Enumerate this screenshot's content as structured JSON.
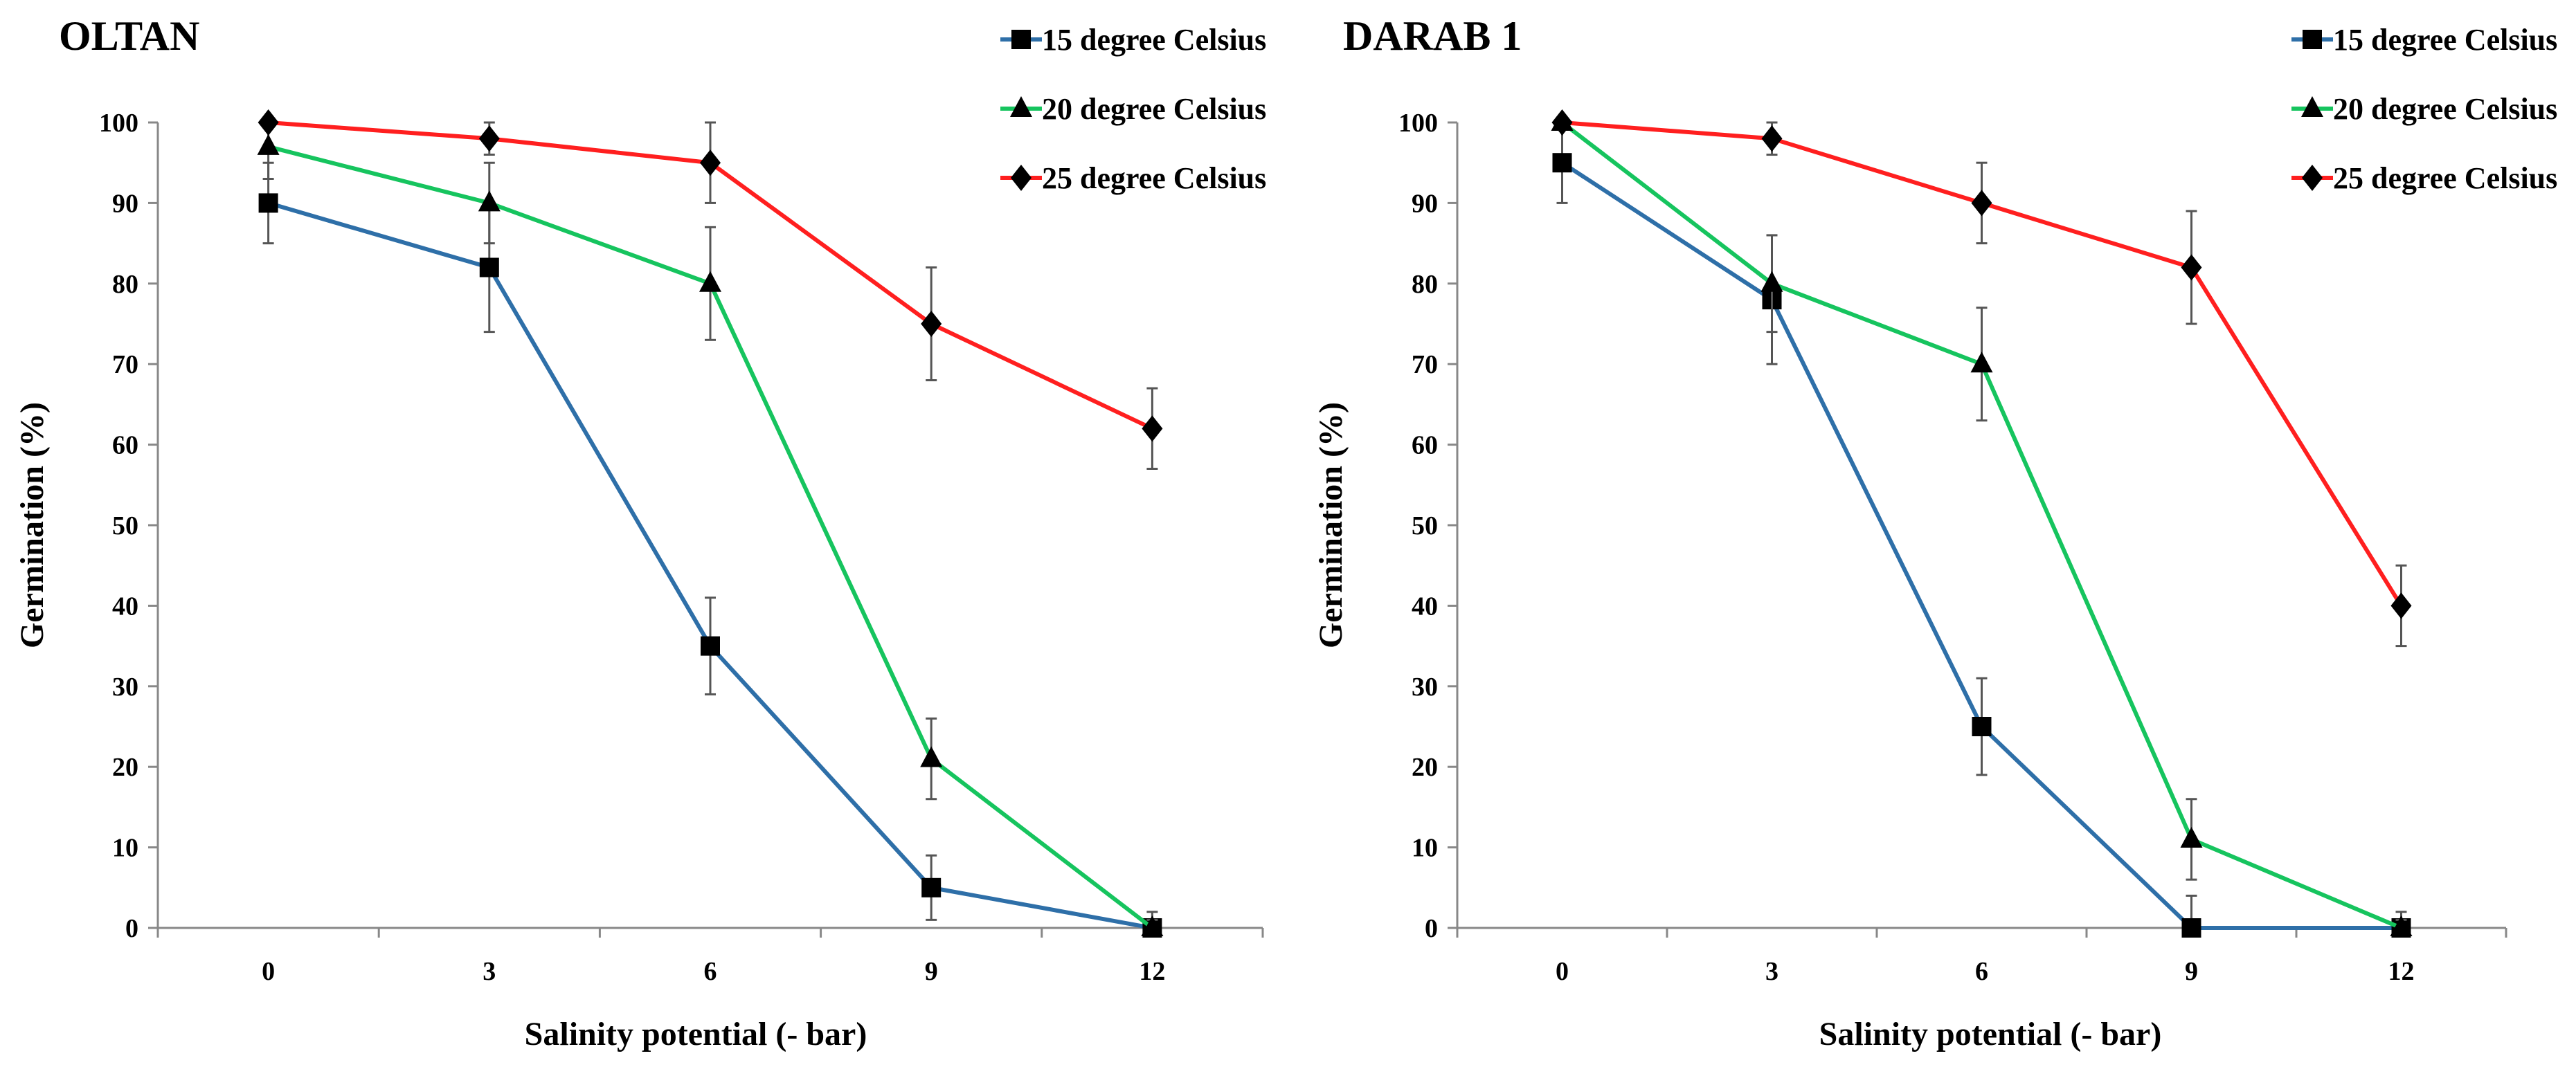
{
  "chart_data": [
    {
      "type": "line",
      "title": "OLTAN",
      "xlabel": "Salinity potential  (- bar)",
      "ylabel": "Germination  (%)",
      "x": [
        0,
        3,
        6,
        9,
        12
      ],
      "xlim": [
        -1.5,
        13.5
      ],
      "ylim": [
        0,
        100
      ],
      "yticks": [
        0,
        10,
        20,
        30,
        40,
        50,
        60,
        70,
        80,
        90,
        100
      ],
      "grid": false,
      "legend_position": "top-right",
      "series": [
        {
          "name": "15 degree Celsius",
          "color": "#2e6fa8",
          "marker": "square",
          "values": [
            90,
            82,
            35,
            5,
            0
          ],
          "errors": [
            5,
            8,
            6,
            4,
            2
          ]
        },
        {
          "name": "20 degree Celsius",
          "color": "#16c45e",
          "marker": "triangle",
          "values": [
            97,
            90,
            80,
            21,
            0
          ],
          "errors": [
            4,
            5,
            7,
            5,
            1
          ]
        },
        {
          "name": "25 degree Celsius",
          "color": "#ff1f1f",
          "marker": "diamond",
          "values": [
            100,
            98,
            95,
            75,
            62
          ],
          "errors": [
            0,
            2,
            5,
            7,
            5
          ]
        }
      ]
    },
    {
      "type": "line",
      "title": "DARAB 1",
      "xlabel": "Salinity potential  (- bar)",
      "ylabel": "Germination  (%)",
      "x": [
        0,
        3,
        6,
        9,
        12
      ],
      "xlim": [
        -1.5,
        13.5
      ],
      "ylim": [
        0,
        100
      ],
      "yticks": [
        0,
        10,
        20,
        30,
        40,
        50,
        60,
        70,
        80,
        90,
        100
      ],
      "grid": false,
      "legend_position": "top-right",
      "series": [
        {
          "name": "15 degree Celsius",
          "color": "#2e6fa8",
          "marker": "square",
          "values": [
            95,
            78,
            25,
            0,
            0
          ],
          "errors": [
            5,
            8,
            6,
            4,
            2
          ]
        },
        {
          "name": "20 degree Celsius",
          "color": "#16c45e",
          "marker": "triangle",
          "values": [
            100,
            80,
            70,
            11,
            0
          ],
          "errors": [
            0,
            6,
            7,
            5,
            1
          ]
        },
        {
          "name": "25 degree Celsius",
          "color": "#ff1f1f",
          "marker": "diamond",
          "values": [
            100,
            98,
            90,
            82,
            40
          ],
          "errors": [
            0,
            2,
            5,
            7,
            5
          ]
        }
      ]
    }
  ]
}
